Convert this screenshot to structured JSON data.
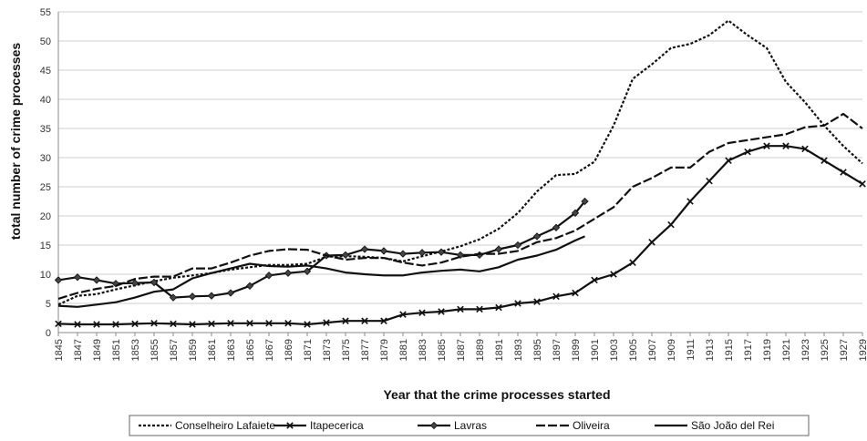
{
  "chart_data": {
    "type": "line",
    "title": "",
    "xlabel": "Year that the crime processes started",
    "ylabel": "total number of crime processes",
    "xlim": [
      1845,
      1929
    ],
    "ylim": [
      0,
      55
    ],
    "yticks": [
      0,
      5,
      10,
      15,
      20,
      25,
      30,
      35,
      40,
      45,
      50,
      55
    ],
    "xticks": [
      1845,
      1847,
      1849,
      1851,
      1853,
      1855,
      1857,
      1859,
      1861,
      1863,
      1865,
      1867,
      1869,
      1871,
      1873,
      1875,
      1877,
      1879,
      1881,
      1883,
      1885,
      1887,
      1889,
      1891,
      1893,
      1895,
      1897,
      1899,
      1901,
      1903,
      1905,
      1907,
      1909,
      1911,
      1913,
      1915,
      1917,
      1919,
      1921,
      1923,
      1925,
      1927,
      1929
    ],
    "grid": true,
    "legend_position": "bottom",
    "series": [
      {
        "name": "Conselheiro Lafaiete",
        "style": "dashed",
        "x": [
          1845,
          1847,
          1849,
          1851,
          1853,
          1855,
          1857,
          1859,
          1861,
          1863,
          1865,
          1867,
          1869,
          1871,
          1873,
          1875,
          1877,
          1879,
          1881,
          1883,
          1885,
          1887,
          1889,
          1891,
          1893,
          1895,
          1897,
          1899,
          1901,
          1903,
          1905,
          1907,
          1909,
          1911,
          1913,
          1915,
          1917,
          1919,
          1921,
          1923,
          1925,
          1927,
          1929
        ],
        "values": [
          4.8,
          6.3,
          6.6,
          7.4,
          8.1,
          8.8,
          9.4,
          9.8,
          10.2,
          10.8,
          11.2,
          11.6,
          11.6,
          11.8,
          13.0,
          13.1,
          13.0,
          12.8,
          12.2,
          13.1,
          13.9,
          14.8,
          16.0,
          17.8,
          20.5,
          24.2,
          27.0,
          27.2,
          29.3,
          35.5,
          43.5,
          46.0,
          48.8,
          49.5,
          51.0,
          53.5,
          51.0,
          48.8,
          43.0,
          39.5,
          35.5,
          32.0,
          29.0
        ]
      },
      {
        "name": "Itapecerica",
        "style": "cross-markers",
        "x": [
          1845,
          1847,
          1849,
          1851,
          1853,
          1855,
          1857,
          1859,
          1861,
          1863,
          1865,
          1867,
          1869,
          1871,
          1873,
          1875,
          1877,
          1879,
          1881,
          1883,
          1885,
          1887,
          1889,
          1891,
          1893,
          1895,
          1897,
          1899,
          1901,
          1903,
          1905,
          1907,
          1909,
          1911,
          1913,
          1915,
          1917,
          1919,
          1921,
          1923,
          1925,
          1927,
          1929
        ],
        "values": [
          1.5,
          1.4,
          1.4,
          1.4,
          1.5,
          1.6,
          1.5,
          1.4,
          1.5,
          1.6,
          1.6,
          1.6,
          1.6,
          1.4,
          1.7,
          2.0,
          2.0,
          2.0,
          3.1,
          3.4,
          3.6,
          4.0,
          4.0,
          4.3,
          5.0,
          5.3,
          6.2,
          6.8,
          9.0,
          10.0,
          12.0,
          15.5,
          18.5,
          22.5,
          26.0,
          29.5,
          31.0,
          32.0,
          32.0,
          31.5,
          29.5,
          27.5,
          25.5
        ]
      },
      {
        "name": "Lavras",
        "style": "diamond-markers",
        "x": [
          1845,
          1847,
          1849,
          1851,
          1853,
          1855,
          1857,
          1859,
          1861,
          1863,
          1865,
          1867,
          1869,
          1871,
          1873,
          1875,
          1877,
          1879,
          1881,
          1883,
          1885,
          1887,
          1889,
          1891,
          1893,
          1895,
          1897,
          1899,
          1900
        ],
        "values": [
          9.0,
          9.5,
          9.0,
          8.4,
          8.5,
          8.6,
          6.0,
          6.2,
          6.3,
          6.8,
          8.0,
          9.8,
          10.2,
          10.5,
          13.2,
          13.3,
          14.3,
          14.0,
          13.5,
          13.7,
          13.8,
          13.3,
          13.3,
          14.3,
          15.0,
          16.5,
          18.0,
          20.5,
          22.5
        ]
      },
      {
        "name": "Oliveira",
        "style": "long-dash",
        "x": [
          1845,
          1847,
          1849,
          1851,
          1853,
          1855,
          1857,
          1859,
          1861,
          1863,
          1865,
          1867,
          1869,
          1871,
          1873,
          1875,
          1877,
          1879,
          1881,
          1883,
          1885,
          1887,
          1889,
          1891,
          1893,
          1895,
          1897,
          1899,
          1901,
          1903,
          1905,
          1907,
          1909,
          1911,
          1913,
          1915,
          1917,
          1919,
          1921,
          1923,
          1925,
          1927,
          1929
        ],
        "values": [
          5.8,
          6.8,
          7.5,
          8.0,
          9.2,
          9.6,
          9.6,
          11.0,
          11.0,
          12.0,
          13.2,
          14.0,
          14.3,
          14.2,
          13.2,
          12.5,
          12.8,
          12.8,
          12.0,
          11.5,
          12.0,
          13.0,
          13.5,
          13.5,
          14.0,
          15.5,
          16.2,
          17.5,
          19.5,
          21.5,
          25.0,
          26.5,
          28.3,
          28.3,
          31.0,
          32.5,
          33.0,
          33.5,
          34.0,
          35.2,
          35.5,
          37.5,
          35.0
        ]
      },
      {
        "name": "São João del Rei",
        "style": "solid",
        "x": [
          1845,
          1847,
          1849,
          1851,
          1853,
          1855,
          1857,
          1859,
          1861,
          1863,
          1865,
          1867,
          1869,
          1871,
          1873,
          1875,
          1877,
          1879,
          1881,
          1883,
          1885,
          1887,
          1889,
          1891,
          1893,
          1895,
          1897,
          1899,
          1900
        ],
        "values": [
          4.6,
          4.4,
          4.8,
          5.2,
          6.0,
          7.0,
          7.4,
          9.3,
          10.2,
          11.0,
          11.8,
          11.4,
          11.3,
          11.5,
          11.0,
          10.3,
          10.0,
          9.8,
          9.8,
          10.3,
          10.6,
          10.8,
          10.5,
          11.2,
          12.5,
          13.2,
          14.2,
          15.8,
          16.5
        ]
      }
    ]
  }
}
